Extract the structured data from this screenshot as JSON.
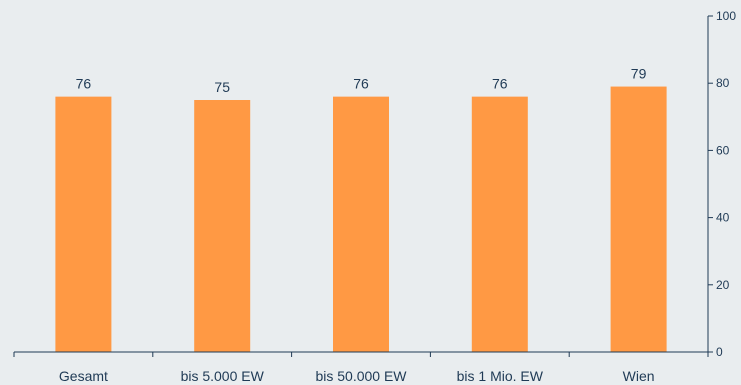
{
  "chart_data": {
    "type": "bar",
    "categories": [
      "Gesamt",
      "bis 5.000 EW",
      "bis 50.000 EW",
      "bis 1 Mio. EW",
      "Wien"
    ],
    "values": [
      76,
      75,
      76,
      76,
      79
    ],
    "data_labels": [
      "76",
      "75",
      "76",
      "76",
      "79"
    ],
    "title": "",
    "xlabel": "",
    "ylabel": "",
    "ylim": [
      0,
      100
    ],
    "yticks": [
      0,
      20,
      40,
      60,
      80,
      100
    ],
    "y_axis_side": "right",
    "grid": false,
    "legend": "none",
    "colors": {
      "bar": "#ff9944",
      "axis": "#1f3a55",
      "text": "#1f3a55",
      "background": "#e9edef"
    }
  }
}
